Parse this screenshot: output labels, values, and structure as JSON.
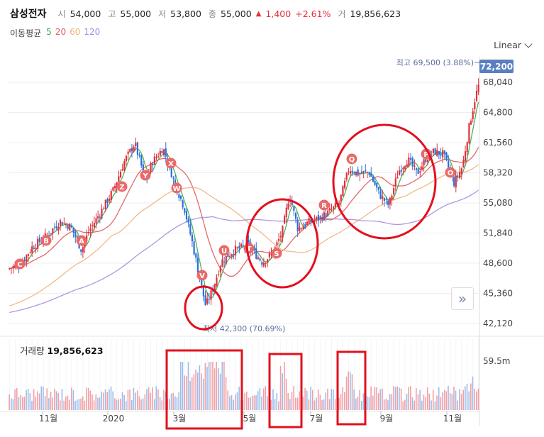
{
  "header": {
    "name": "삼성전자",
    "open_label": "시",
    "open": "54,000",
    "high_label": "고",
    "high": "55,000",
    "low_label": "저",
    "low": "53,800",
    "close_label": "종",
    "close": "55,000",
    "change": "1,400",
    "change_pct": "+2.61%",
    "volume_label": "거",
    "volume": "19,856,623"
  },
  "ma": {
    "title": "이동평균",
    "items": [
      {
        "label": "5",
        "color": "#3aa84a"
      },
      {
        "label": "20",
        "color": "#e05a5a"
      },
      {
        "label": "60",
        "color": "#f0b27a"
      },
      {
        "label": "120",
        "color": "#a989e0"
      }
    ]
  },
  "scale_button": {
    "label": "Linear",
    "icon": "chevron-down-icon"
  },
  "nav_button": {
    "icon": "double-chevron-right-icon",
    "glyph": "»"
  },
  "volume_panel": {
    "title": "거래량",
    "value": "19,856,623",
    "axis_label": "59.5m"
  },
  "annotations": {
    "high": "최고 69,500 (3.88%)",
    "low": "최저 42,300 (70.69%)",
    "current_price": "72,200"
  },
  "colors": {
    "up": "#e0303a",
    "down": "#2a6fdb",
    "highlight": "#e3101e",
    "label_bg": "#5a7fc0"
  },
  "chart_data": {
    "type": "candlestick",
    "y_ticks": [
      "68,040",
      "64,800",
      "61,560",
      "58,320",
      "55,080",
      "51,840",
      "48,600",
      "45,360",
      "42,120"
    ],
    "ylim": [
      42120,
      72200
    ],
    "x_labels": [
      "11월",
      "2020",
      "3월",
      "5월",
      "7월",
      "9월",
      "11월"
    ],
    "close_approx": [
      {
        "period": "2019-10",
        "value": 50000
      },
      {
        "period": "2019-11",
        "value": 51500
      },
      {
        "period": "2019-12",
        "value": 55800
      },
      {
        "period": "2020-01",
        "value": 61000
      },
      {
        "period": "2020-02",
        "value": 57000
      },
      {
        "period": "2020-03",
        "value": 47500
      },
      {
        "period": "2020-04",
        "value": 49500
      },
      {
        "period": "2020-05",
        "value": 49000
      },
      {
        "period": "2020-06",
        "value": 53500
      },
      {
        "period": "2020-07",
        "value": 55500
      },
      {
        "period": "2020-08",
        "value": 58000
      },
      {
        "period": "2020-09",
        "value": 58500
      },
      {
        "period": "2020-10",
        "value": 58000
      },
      {
        "period": "2020-11",
        "value": 66000
      },
      {
        "period": "2020-12",
        "value": 72200
      }
    ],
    "markers": [
      "C",
      "B",
      "A",
      "Z",
      "Y",
      "X",
      "W",
      "V",
      "U",
      "T",
      "S",
      "R",
      "Q",
      "P",
      "O"
    ],
    "volume_axis": [
      "59.5m"
    ]
  }
}
